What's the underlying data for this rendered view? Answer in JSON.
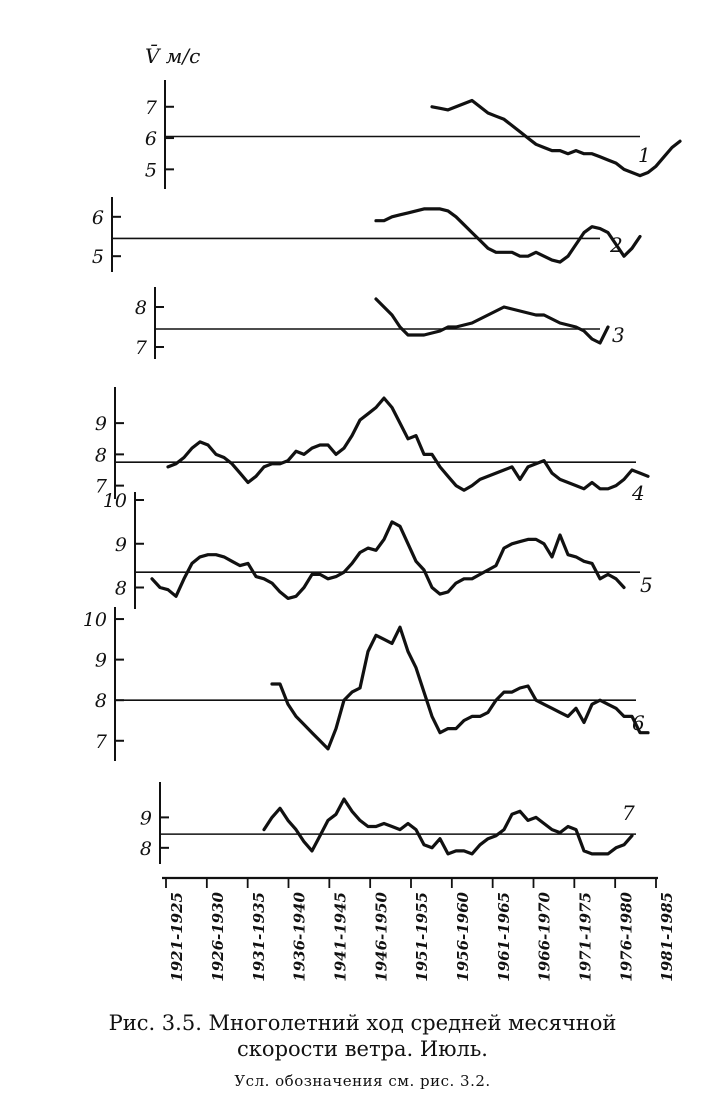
{
  "caption": {
    "line1": "Рис. 3.5. Многолетний ход средней месячной",
    "line2": "скорости ветра. Июль.",
    "note": "Усл. обозначения см. рис. 3.2."
  },
  "chart_data": {
    "type": "line",
    "title": "",
    "ylabel": "V̄ м/с",
    "x_ticks": [
      "1921-1925",
      "1926-1930",
      "1931-1935",
      "1936-1940",
      "1941-1945",
      "1946-1950",
      "1951-1955",
      "1956-1960",
      "1961-1965",
      "1966-1970",
      "1971-1975",
      "1976-1980",
      "1981-1985"
    ],
    "x_range": [
      1923,
      1983
    ],
    "panels": [
      {
        "name": "1",
        "ylim": [
          4.5,
          7.6
        ],
        "yticks": [
          5,
          6,
          7
        ],
        "ytick_labels": [
          "5",
          "6",
          "7"
        ],
        "mean": 6.05,
        "x_start": 1956,
        "values": [
          7.0,
          6.95,
          6.9,
          7.0,
          7.1,
          7.2,
          7.0,
          6.8,
          6.7,
          6.6,
          6.4,
          6.2,
          6.0,
          5.8,
          5.7,
          5.6,
          5.6,
          5.5,
          5.6,
          5.5,
          5.5,
          5.4,
          5.3,
          5.2,
          5.0,
          4.9,
          4.8,
          4.9,
          5.1,
          5.4,
          5.7,
          5.9
        ]
      },
      {
        "name": "2",
        "ylim": [
          4.7,
          6.3
        ],
        "yticks": [
          5,
          6
        ],
        "ytick_labels": [
          "5",
          "6"
        ],
        "mean": 5.45,
        "x_start": 1949,
        "values": [
          5.9,
          5.9,
          6.0,
          6.05,
          6.1,
          6.15,
          6.2,
          6.2,
          6.2,
          6.15,
          6.0,
          5.8,
          5.6,
          5.4,
          5.2,
          5.1,
          5.1,
          5.1,
          5.0,
          5.0,
          5.1,
          5.0,
          4.9,
          4.85,
          5.0,
          5.3,
          5.6,
          5.75,
          5.7,
          5.6,
          5.3,
          5.0,
          5.2,
          5.5
        ]
      },
      {
        "name": "3",
        "ylim": [
          6.8,
          8.3
        ],
        "yticks": [
          7,
          8
        ],
        "ytick_labels": [
          "7",
          "8"
        ],
        "mean": 7.45,
        "x_start": 1949,
        "values": [
          8.2,
          8.0,
          7.8,
          7.5,
          7.3,
          7.3,
          7.3,
          7.35,
          7.4,
          7.5,
          7.5,
          7.55,
          7.6,
          7.7,
          7.8,
          7.9,
          8.0,
          7.95,
          7.9,
          7.85,
          7.8,
          7.8,
          7.7,
          7.6,
          7.55,
          7.5,
          7.4,
          7.2,
          7.1,
          7.5
        ]
      },
      {
        "name": "4",
        "ylim": [
          6.7,
          9.9
        ],
        "yticks": [
          7,
          8,
          9
        ],
        "ytick_labels": [
          "7",
          "8",
          "9"
        ],
        "mean": 7.75,
        "x_start": 1923,
        "values": [
          7.6,
          7.7,
          7.9,
          8.2,
          8.4,
          8.3,
          8.0,
          7.9,
          7.7,
          7.4,
          7.1,
          7.3,
          7.6,
          7.7,
          7.7,
          7.8,
          8.1,
          8.0,
          8.2,
          8.3,
          8.3,
          8.0,
          8.2,
          8.6,
          9.1,
          9.3,
          9.5,
          9.8,
          9.5,
          9.0,
          8.5,
          8.6,
          8.0,
          8.0,
          7.6,
          7.3,
          7.0,
          6.85,
          7.0,
          7.2,
          7.3,
          7.4,
          7.5,
          7.6,
          7.2,
          7.6,
          7.7,
          7.8,
          7.4,
          7.2,
          7.1,
          7.0,
          6.9,
          7.1,
          6.9,
          6.9,
          7.0,
          7.2,
          7.5,
          7.4,
          7.3
        ]
      },
      {
        "name": "5",
        "ylim": [
          7.6,
          10.0
        ],
        "yticks": [
          8,
          9,
          10
        ],
        "ytick_labels": [
          "8",
          "9",
          "10"
        ],
        "mean": 8.35,
        "x_start": 1921,
        "values": [
          8.2,
          8.0,
          7.95,
          7.8,
          8.2,
          8.55,
          8.7,
          8.75,
          8.75,
          8.7,
          8.6,
          8.5,
          8.55,
          8.25,
          8.2,
          8.1,
          7.9,
          7.75,
          7.8,
          8.0,
          8.3,
          8.3,
          8.2,
          8.25,
          8.35,
          8.55,
          8.8,
          8.9,
          8.85,
          9.1,
          9.5,
          9.4,
          9.0,
          8.6,
          8.4,
          8.0,
          7.85,
          7.9,
          8.1,
          8.2,
          8.2,
          8.3,
          8.4,
          8.5,
          8.9,
          9.0,
          9.05,
          9.1,
          9.1,
          9.0,
          8.7,
          9.2,
          8.75,
          8.7,
          8.6,
          8.55,
          8.2,
          8.3,
          8.2,
          8.0
        ]
      },
      {
        "name": "6",
        "ylim": [
          6.6,
          10.1
        ],
        "yticks": [
          7,
          8,
          9,
          10
        ],
        "ytick_labels": [
          "7",
          "8",
          "9",
          "10"
        ],
        "mean": 8.0,
        "x_start": 1936,
        "values": [
          8.4,
          8.4,
          7.9,
          7.6,
          7.4,
          7.2,
          7.0,
          6.8,
          7.3,
          8.0,
          8.2,
          8.3,
          9.2,
          9.6,
          9.5,
          9.4,
          9.8,
          9.2,
          8.8,
          8.2,
          7.6,
          7.2,
          7.3,
          7.3,
          7.5,
          7.6,
          7.6,
          7.7,
          8.0,
          8.2,
          8.2,
          8.3,
          8.35,
          8.0,
          7.9,
          7.8,
          7.7,
          7.6,
          7.8,
          7.45,
          7.9,
          8.0,
          7.9,
          7.8,
          7.6,
          7.6,
          7.2,
          7.2
        ]
      },
      {
        "name": "7",
        "ylim": [
          7.6,
          9.9
        ],
        "yticks": [
          8,
          9
        ],
        "ytick_labels": [
          "8",
          "9"
        ],
        "mean": 8.45,
        "x_start": 1935,
        "values": [
          8.6,
          9.0,
          9.3,
          8.9,
          8.6,
          8.2,
          7.9,
          8.4,
          8.9,
          9.1,
          9.6,
          9.2,
          8.9,
          8.7,
          8.7,
          8.8,
          8.7,
          8.6,
          8.8,
          8.6,
          8.1,
          8.0,
          8.3,
          7.8,
          7.9,
          7.9,
          7.8,
          8.1,
          8.3,
          8.4,
          8.6,
          9.1,
          9.2,
          8.9,
          9.0,
          8.8,
          8.6,
          8.5,
          8.7,
          8.6,
          7.9,
          7.8,
          7.8,
          7.8,
          8.0,
          8.1,
          8.4
        ]
      }
    ]
  }
}
